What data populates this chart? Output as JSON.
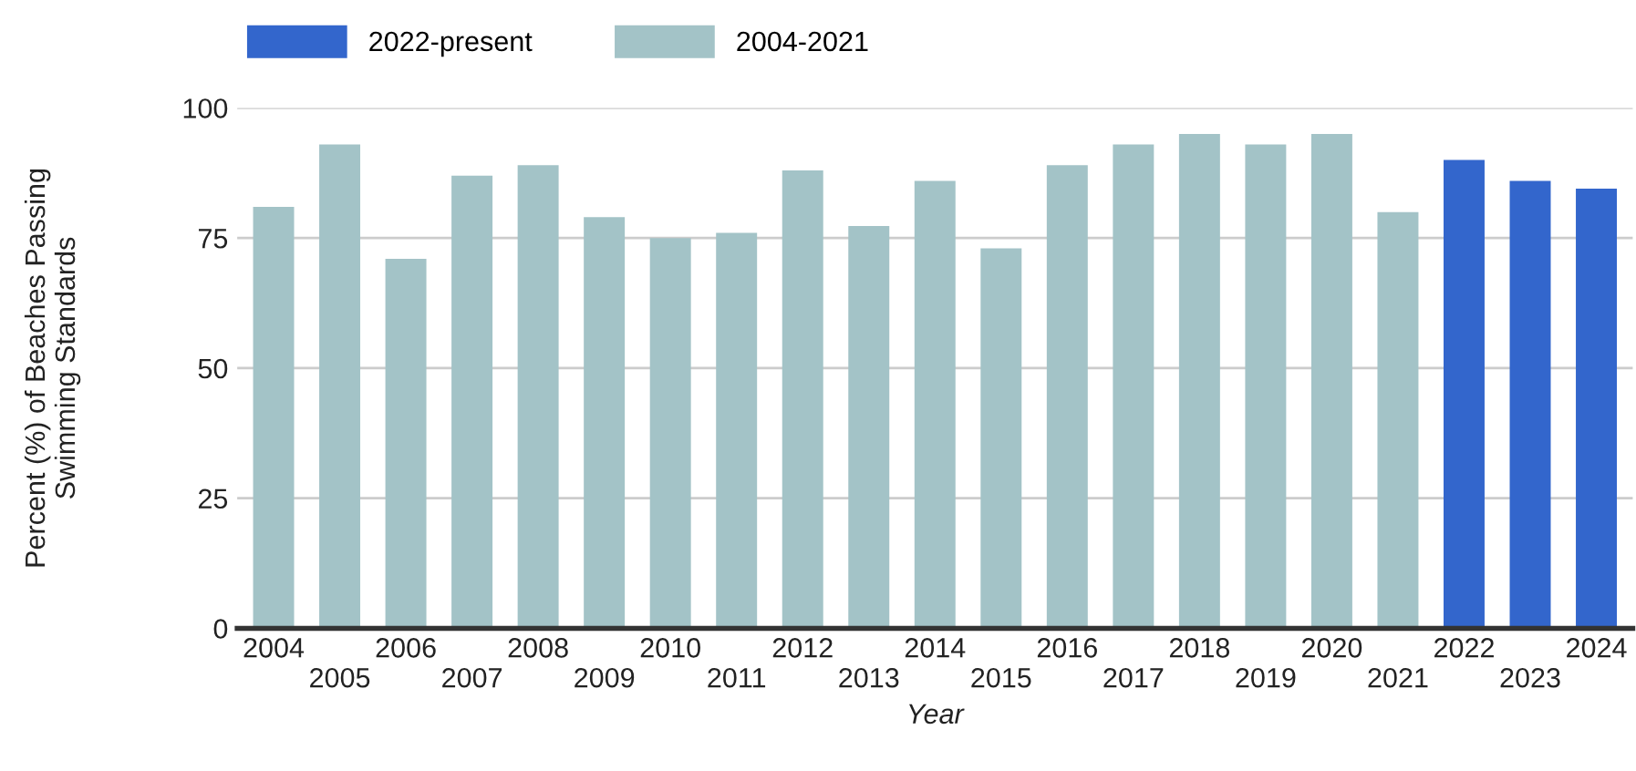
{
  "chart_data": {
    "type": "bar",
    "xlabel": "Year",
    "ylabel": "Percent (%) of Beaches Passing\nSwimming Standards",
    "categories": [
      "2004",
      "2005",
      "2006",
      "2007",
      "2008",
      "2009",
      "2010",
      "2011",
      "2012",
      "2013",
      "2014",
      "2015",
      "2016",
      "2017",
      "2018",
      "2019",
      "2020",
      "2021",
      "2022",
      "2023",
      "2024"
    ],
    "series": [
      {
        "name": "2022-present",
        "color": "#3366cc",
        "values": [
          null,
          null,
          null,
          null,
          null,
          null,
          null,
          null,
          null,
          null,
          null,
          null,
          null,
          null,
          null,
          null,
          null,
          null,
          90,
          86,
          84.5
        ]
      },
      {
        "name": "2004-2021",
        "color": "#a3c3c7",
        "values": [
          81,
          93,
          71,
          87,
          89,
          79,
          75,
          76,
          88,
          77.3,
          86,
          73,
          89,
          93,
          95,
          93,
          95,
          80,
          null,
          null,
          null
        ]
      }
    ],
    "ylim": [
      0,
      100
    ],
    "yticks": [
      0,
      25,
      50,
      75,
      100
    ],
    "grid": "y",
    "legend": "top left"
  }
}
